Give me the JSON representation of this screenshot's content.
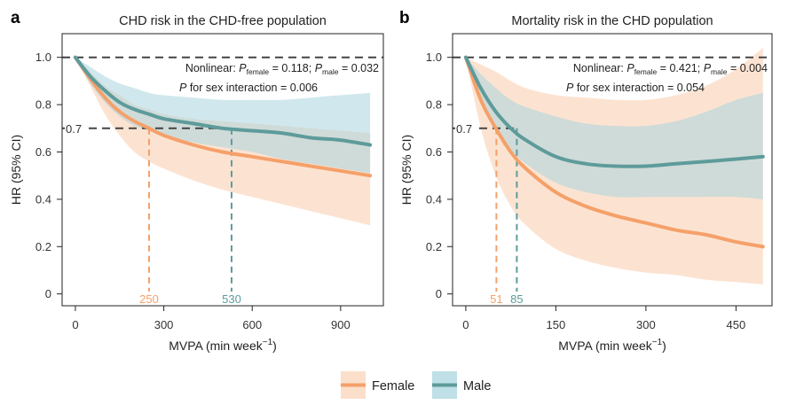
{
  "colors": {
    "female": "#F5A06A",
    "female_band": "#FBD9C2",
    "male": "#5E9B9B",
    "male_band": "#A9D6DF",
    "reference_line": "#444444"
  },
  "legend": {
    "female_label": "Female",
    "male_label": "Male"
  },
  "chart_data": [
    {
      "panel_label": "a",
      "type": "line",
      "title": "CHD risk in the CHD-free population",
      "xlabel": "MVPA (min week",
      "xlabel_sup": "−1",
      "xlabel_end": ")",
      "ylabel": "HR (95% CI)",
      "xlim": [
        -45,
        1045
      ],
      "ylim": [
        -0.05,
        1.1
      ],
      "xticks": [
        0,
        300,
        600,
        900
      ],
      "yticks": [
        0,
        0.2,
        0.4,
        0.6,
        0.8,
        1.0
      ],
      "ytick_labels": [
        "0",
        "0.2",
        "0.4",
        "0.6",
        "0.8",
        "1.0"
      ],
      "reference_hr": 1.0,
      "threshold_hr": 0.7,
      "threshold_label": "0.7",
      "annotations": {
        "nonlinear_prefix": "Nonlinear: ",
        "p_italic": "P",
        "female_sub": "female",
        "female_p": " = 0.118; ",
        "male_sub": "male",
        "male_p": " = 0.032",
        "interaction_rest": " for sex interaction = 0.006"
      },
      "series": [
        {
          "name": "Female",
          "crossing_x": 250,
          "crossing_label": "250",
          "x": [
            0,
            50,
            100,
            150,
            200,
            250,
            300,
            400,
            500,
            600,
            700,
            800,
            900,
            1000
          ],
          "y": [
            1.0,
            0.91,
            0.83,
            0.77,
            0.73,
            0.7,
            0.67,
            0.63,
            0.6,
            0.58,
            0.56,
            0.54,
            0.52,
            0.5
          ],
          "lower": [
            1.0,
            0.88,
            0.76,
            0.67,
            0.6,
            0.56,
            0.53,
            0.48,
            0.44,
            0.41,
            0.38,
            0.35,
            0.32,
            0.29
          ],
          "upper": [
            1.0,
            0.94,
            0.88,
            0.84,
            0.8,
            0.78,
            0.76,
            0.74,
            0.73,
            0.72,
            0.71,
            0.7,
            0.69,
            0.68
          ]
        },
        {
          "name": "Male",
          "crossing_x": 530,
          "crossing_label": "530",
          "x": [
            0,
            50,
            100,
            150,
            200,
            250,
            300,
            400,
            500,
            600,
            700,
            800,
            900,
            1000
          ],
          "y": [
            1.0,
            0.92,
            0.86,
            0.81,
            0.78,
            0.76,
            0.74,
            0.72,
            0.7,
            0.69,
            0.68,
            0.66,
            0.65,
            0.63
          ],
          "lower": [
            1.0,
            0.89,
            0.81,
            0.75,
            0.71,
            0.69,
            0.67,
            0.64,
            0.62,
            0.6,
            0.57,
            0.55,
            0.53,
            0.51
          ],
          "upper": [
            1.0,
            0.96,
            0.92,
            0.89,
            0.87,
            0.85,
            0.84,
            0.83,
            0.82,
            0.82,
            0.82,
            0.83,
            0.84,
            0.85
          ]
        }
      ]
    },
    {
      "panel_label": "b",
      "type": "line",
      "title": "Mortality risk in the CHD population",
      "xlabel": "MVPA (min week",
      "xlabel_sup": "−1",
      "xlabel_end": ")",
      "ylabel": "HR (95% CI)",
      "xlim": [
        -22,
        510
      ],
      "ylim": [
        -0.05,
        1.1
      ],
      "xticks": [
        0,
        150,
        300,
        450
      ],
      "yticks": [
        0,
        0.2,
        0.4,
        0.6,
        0.8,
        1.0
      ],
      "ytick_labels": [
        "0",
        "0.2",
        "0.4",
        "0.6",
        "0.8",
        "1.0"
      ],
      "reference_hr": 1.0,
      "threshold_hr": 0.7,
      "threshold_label": "0.7",
      "annotations": {
        "nonlinear_prefix": "Nonlinear: ",
        "p_italic": "P",
        "female_sub": "female",
        "female_p": " = 0.421; ",
        "male_sub": "male",
        "male_p": " = 0.004",
        "interaction_rest": " for sex interaction = 0.054"
      },
      "series": [
        {
          "name": "Female",
          "crossing_x": 51,
          "crossing_label": "51",
          "x": [
            0,
            25,
            50,
            75,
            100,
            150,
            200,
            250,
            300,
            350,
            400,
            450,
            495
          ],
          "y": [
            1.0,
            0.82,
            0.7,
            0.6,
            0.53,
            0.43,
            0.37,
            0.33,
            0.3,
            0.27,
            0.25,
            0.22,
            0.2
          ],
          "lower": [
            1.0,
            0.7,
            0.5,
            0.37,
            0.29,
            0.19,
            0.14,
            0.11,
            0.09,
            0.08,
            0.06,
            0.05,
            0.04
          ],
          "upper": [
            1.0,
            0.97,
            0.94,
            0.9,
            0.87,
            0.84,
            0.83,
            0.82,
            0.82,
            0.84,
            0.88,
            0.95,
            1.04
          ]
        },
        {
          "name": "Male",
          "crossing_x": 85,
          "crossing_label": "85",
          "x": [
            0,
            25,
            50,
            75,
            100,
            150,
            200,
            250,
            300,
            350,
            400,
            450,
            495
          ],
          "y": [
            1.0,
            0.87,
            0.77,
            0.7,
            0.65,
            0.58,
            0.55,
            0.54,
            0.54,
            0.55,
            0.56,
            0.57,
            0.58
          ],
          "lower": [
            1.0,
            0.82,
            0.69,
            0.61,
            0.55,
            0.47,
            0.43,
            0.41,
            0.41,
            0.41,
            0.41,
            0.41,
            0.4
          ],
          "upper": [
            1.0,
            0.93,
            0.87,
            0.82,
            0.79,
            0.75,
            0.72,
            0.71,
            0.71,
            0.73,
            0.77,
            0.82,
            0.85
          ]
        }
      ]
    }
  ]
}
